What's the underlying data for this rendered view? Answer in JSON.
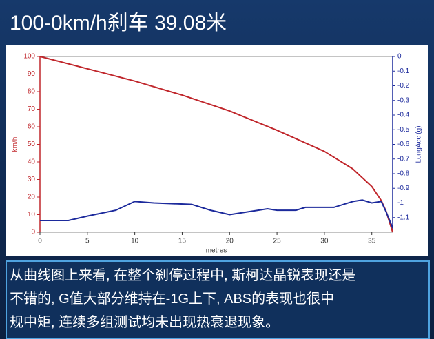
{
  "header": {
    "title": "100-0km/h刹车 39.08米"
  },
  "caption": [
    "从曲线图上来看, 在整个刹停过程中, 斯柯达晶锐表现还是",
    "不错的, G值大部分维持在-1G上下, ABS的表现也很中",
    "规中矩, 连续多组测试均未出现热衰退现象。"
  ],
  "chart_data": {
    "type": "line",
    "x_label": "metres",
    "y_label": "km/h",
    "y2_label": "LongAcc (g)",
    "xlim": [
      0,
      37.2
    ],
    "xticks": [
      0,
      5,
      10,
      15,
      20,
      25,
      30,
      35
    ],
    "ylim": [
      0,
      100
    ],
    "yticks": [
      0,
      10,
      20,
      30,
      40,
      50,
      60,
      70,
      80,
      90,
      100
    ],
    "y2lim": [
      -1.2,
      0
    ],
    "y2ticks": [
      0,
      -0.1,
      -0.2,
      -0.3,
      -0.4,
      -0.5,
      -0.6,
      -0.7,
      -0.8,
      -0.9,
      -1,
      -1.1
    ],
    "series": [
      {
        "color": "#c0262b",
        "x": [
          0,
          5,
          10,
          15,
          20,
          25,
          30,
          33,
          35,
          36,
          36.5,
          37.2
        ],
        "values": [
          100,
          93,
          86,
          78,
          69,
          58,
          46,
          36,
          26,
          18,
          12,
          0
        ]
      },
      {
        "color": "#1c2a9c",
        "axis": "y2",
        "x": [
          0,
          3,
          5,
          8,
          10,
          12,
          16,
          18,
          20,
          22,
          24,
          25,
          27,
          28,
          30,
          31,
          33,
          34,
          35,
          36,
          36.5,
          37.2
        ],
        "values": [
          -1.12,
          -1.12,
          -1.09,
          -1.05,
          -0.99,
          -1.0,
          -1.01,
          -1.05,
          -1.08,
          -1.06,
          -1.04,
          -1.05,
          -1.05,
          -1.03,
          -1.03,
          -1.03,
          -0.99,
          -0.98,
          -1.0,
          -0.99,
          -1.06,
          -1.17
        ]
      }
    ]
  }
}
